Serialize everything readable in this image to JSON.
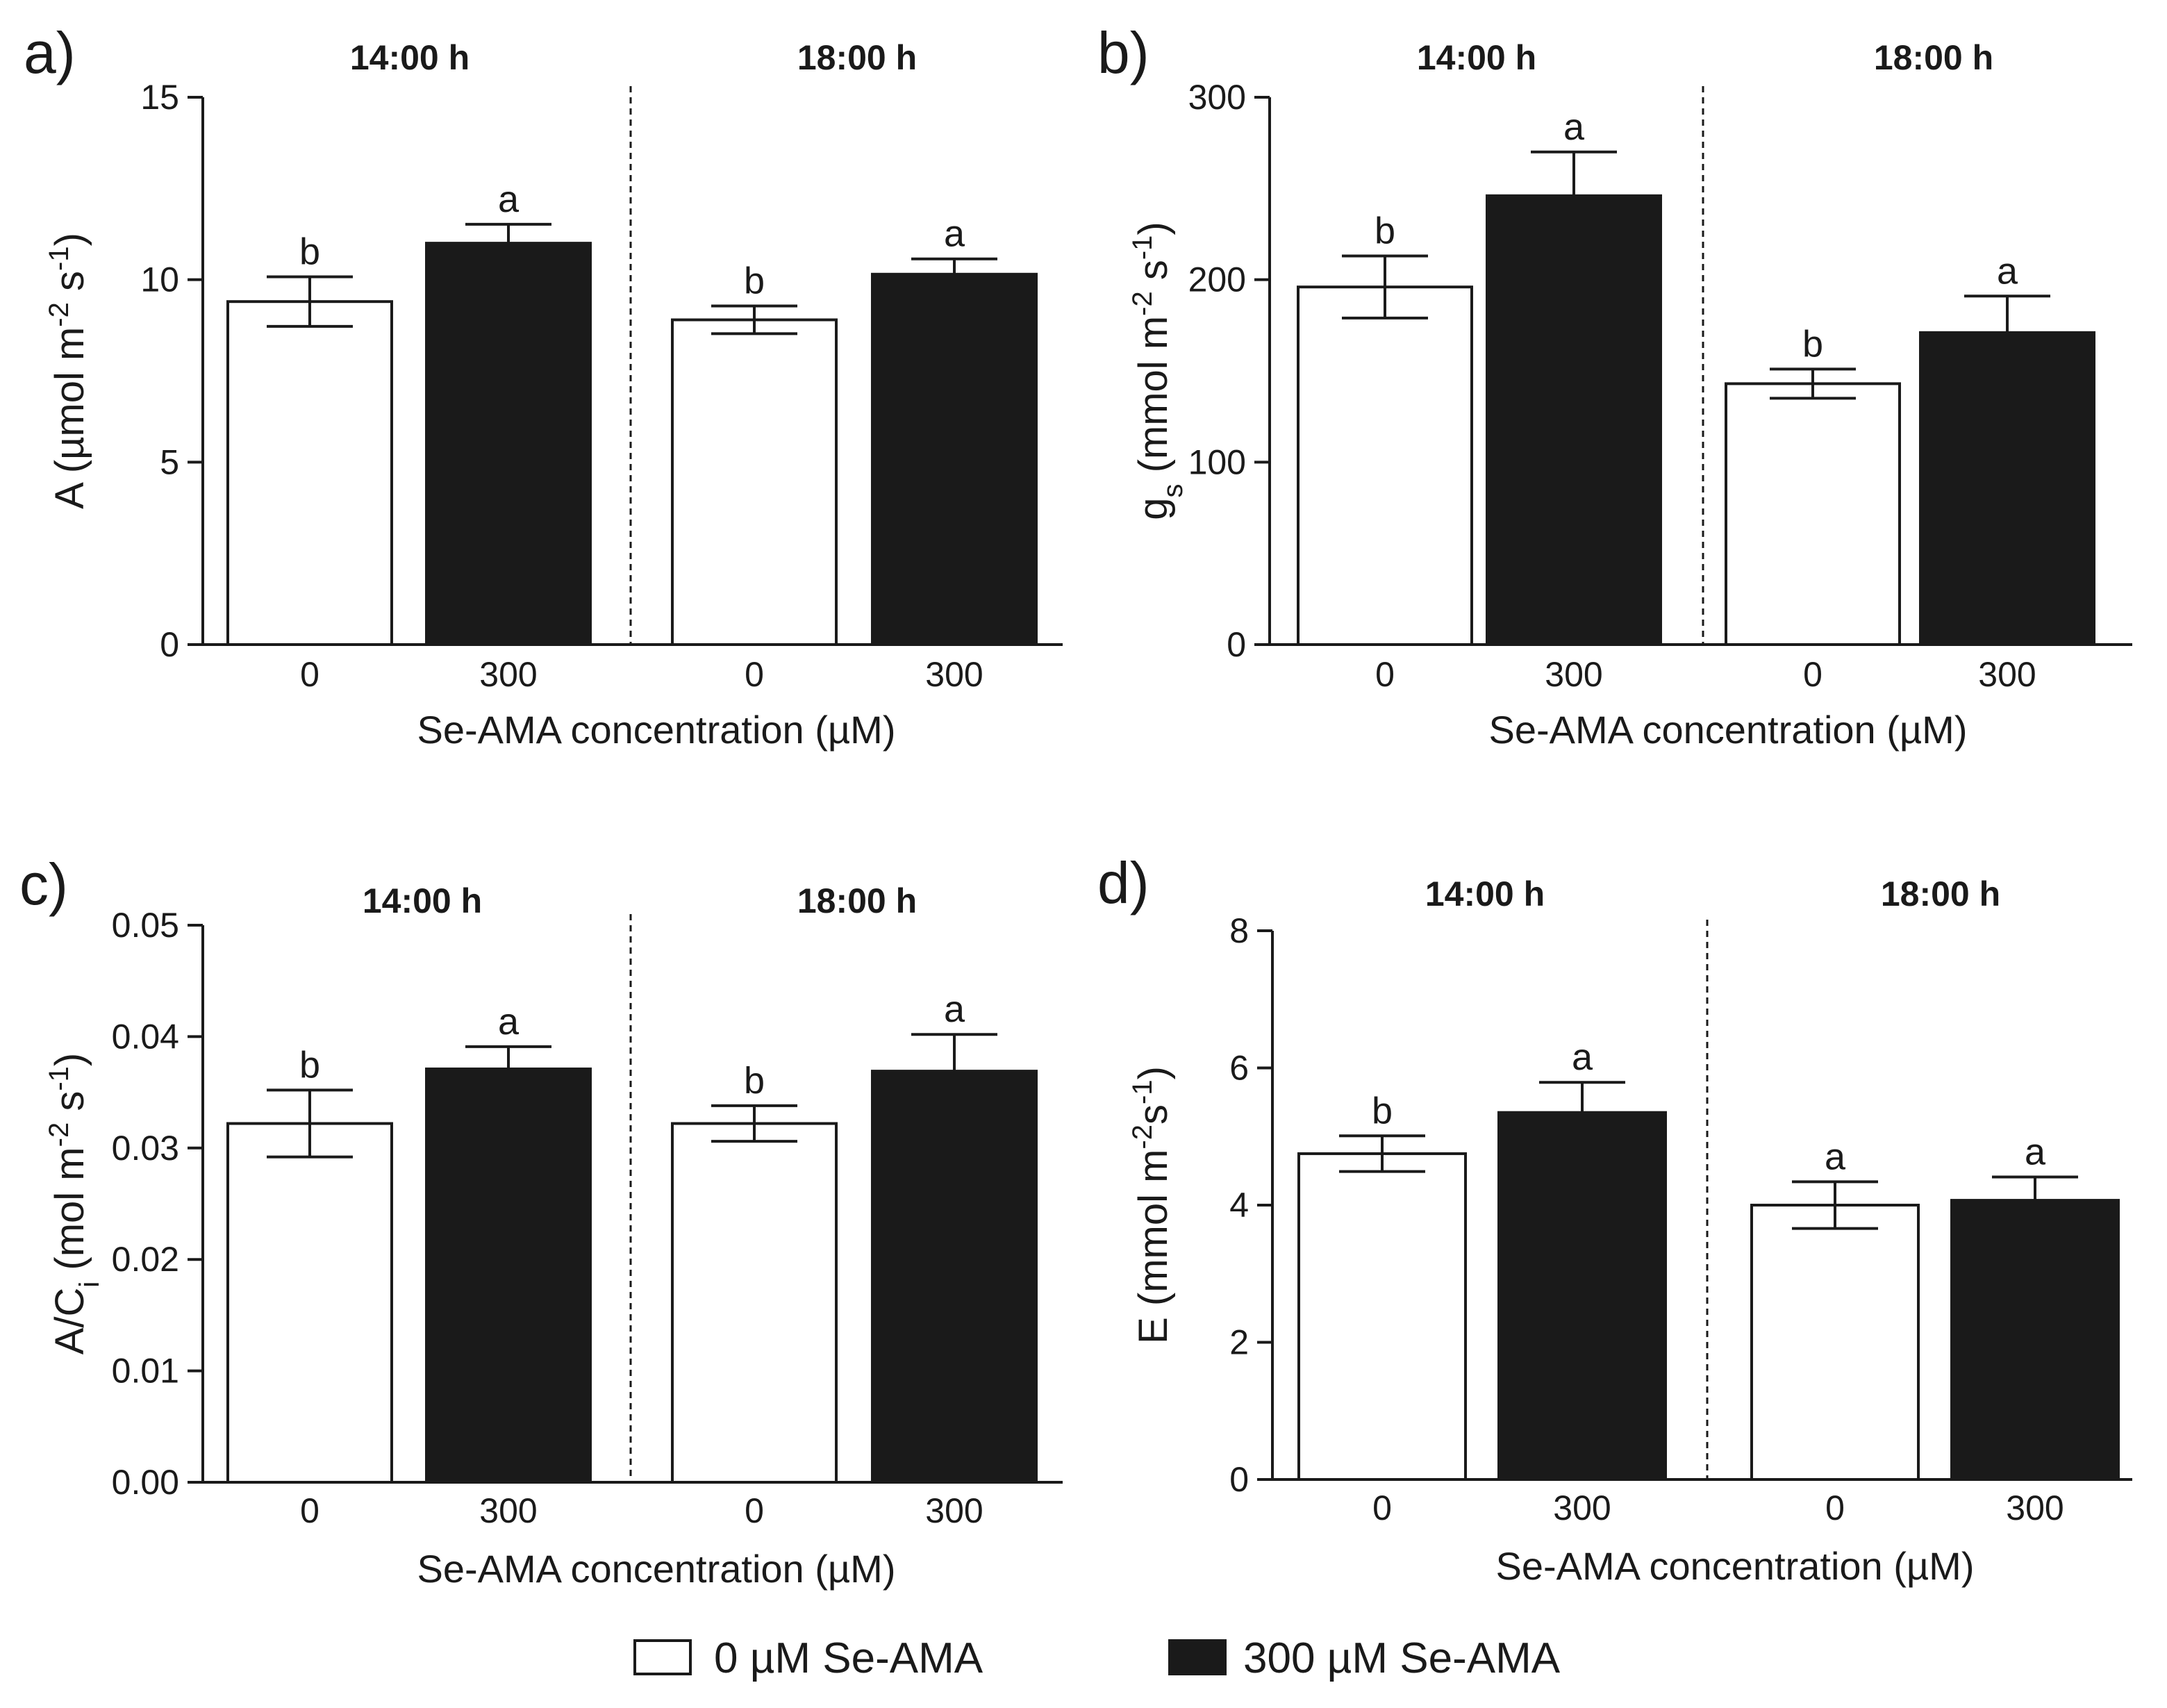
{
  "chart_data": [
    {
      "type": "bar",
      "panel_label": "a)",
      "group_labels": [
        "14:00 h",
        "18:00 h"
      ],
      "categories": [
        "0",
        "300",
        "0",
        "300"
      ],
      "values": [
        9.4,
        11.0,
        8.9,
        10.15
      ],
      "errors": [
        0.68,
        0.52,
        0.38,
        0.42
      ],
      "letters": [
        "b",
        "a",
        "b",
        "a"
      ],
      "fills": [
        "#ffffff",
        "#1a1a1a",
        "#ffffff",
        "#1a1a1a"
      ],
      "xlabel": "Se-AMA concentration (µM)",
      "ylabel": {
        "main": "A (µmol m",
        "sup1": "-2",
        "mid": " s",
        "sup2": "-1",
        "end": ")"
      },
      "ylim": [
        0,
        15
      ],
      "yticks": [
        "0",
        "5",
        "10",
        "15"
      ]
    },
    {
      "type": "bar",
      "panel_label": "b)",
      "group_labels": [
        "14:00 h",
        "18:00 h"
      ],
      "categories": [
        "0",
        "300",
        "0",
        "300"
      ],
      "values": [
        196,
        246,
        143,
        171
      ],
      "errors": [
        17,
        24,
        8,
        20
      ],
      "letters": [
        "b",
        "a",
        "b",
        "a"
      ],
      "fills": [
        "#ffffff",
        "#1a1a1a",
        "#ffffff",
        "#1a1a1a"
      ],
      "xlabel": "Se-AMA concentration (µM)",
      "ylabel": {
        "pre": "g",
        "sub": "s",
        "main": " (mmol m",
        "sup1": "-2",
        "mid": " s",
        "sup2": "-1",
        "end": ")"
      },
      "ylim": [
        0,
        300
      ],
      "yticks": [
        "0",
        "100",
        "200",
        "300"
      ]
    },
    {
      "type": "bar",
      "panel_label": "c)",
      "group_labels": [
        "14:00 h",
        "18:00 h"
      ],
      "categories": [
        "0",
        "300",
        "0",
        "300"
      ],
      "values": [
        0.0322,
        0.0371,
        0.0322,
        0.0369
      ],
      "errors": [
        0.003,
        0.002,
        0.0016,
        0.0033
      ],
      "letters": [
        "b",
        "a",
        "b",
        "a"
      ],
      "fills": [
        "#ffffff",
        "#1a1a1a",
        "#ffffff",
        "#1a1a1a"
      ],
      "xlabel": "Se-AMA concentration (µM)",
      "ylabel": {
        "pre": "A/C",
        "sub": "i",
        "main": " (mol m",
        "sup1": "-2",
        "mid": " s",
        "sup2": "-1",
        "end": ")"
      },
      "ylim": [
        0,
        0.05
      ],
      "yticks": [
        "0.00",
        "0.01",
        "0.02",
        "0.03",
        "0.04",
        "0.05"
      ]
    },
    {
      "type": "bar",
      "panel_label": "d)",
      "group_labels": [
        "14:00 h",
        "18:00 h"
      ],
      "categories": [
        "0",
        "300",
        "0",
        "300"
      ],
      "values": [
        4.75,
        5.35,
        4.0,
        4.07
      ],
      "errors": [
        0.26,
        0.44,
        0.34,
        0.34
      ],
      "letters": [
        "b",
        "a",
        "a",
        "a"
      ],
      "fills": [
        "#ffffff",
        "#1a1a1a",
        "#ffffff",
        "#1a1a1a"
      ],
      "xlabel": "Se-AMA concentration (µM)",
      "ylabel": {
        "main": "E (mmol m",
        "sup1": "-2",
        "mid": "s",
        "sup2": "-1",
        "end": ")"
      },
      "ylim": [
        0,
        8
      ],
      "yticks": [
        "0",
        "2",
        "4",
        "6",
        "8"
      ]
    }
  ],
  "legend": {
    "items": [
      {
        "label": "0 µM Se-AMA",
        "fill": "#ffffff"
      },
      {
        "label": "300 µM Se-AMA",
        "fill": "#1a1a1a"
      }
    ]
  }
}
